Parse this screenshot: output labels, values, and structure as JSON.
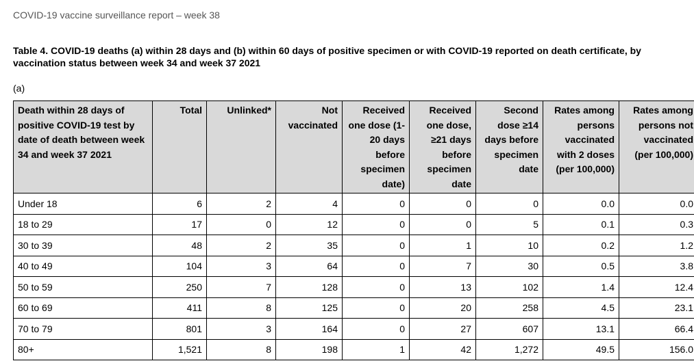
{
  "header": {
    "report_title": "COVID-19 vaccine surveillance report – week 38"
  },
  "table_title": "Table 4. COVID-19 deaths (a) within 28 days and (b) within 60 days of positive specimen or with COVID-19 reported on death certificate, by vaccination status between week 34 and week 37 2021",
  "section_label": "(a)",
  "columns": [
    "Death within 28 days of positive COVID-19 test by date of death between week 34 and week 37 2021",
    "Total",
    "Unlinked*",
    "Not vaccinated",
    "Received one dose (1-20 days before specimen date)",
    "Received one dose, ≥21 days before specimen date",
    "Second dose ≥14 days before specimen date",
    "Rates among persons vaccinated with 2 doses (per 100,000)",
    "Rates among persons not vaccinated (per 100,000)"
  ],
  "rows": [
    [
      "Under 18",
      "6",
      "2",
      "4",
      "0",
      "0",
      "0",
      "0.0",
      "0.0"
    ],
    [
      "18 to 29",
      "17",
      "0",
      "12",
      "0",
      "0",
      "5",
      "0.1",
      "0.3"
    ],
    [
      "30 to 39",
      "48",
      "2",
      "35",
      "0",
      "1",
      "10",
      "0.2",
      "1.2"
    ],
    [
      "40 to 49",
      "104",
      "3",
      "64",
      "0",
      "7",
      "30",
      "0.5",
      "3.8"
    ],
    [
      "50 to 59",
      "250",
      "7",
      "128",
      "0",
      "13",
      "102",
      "1.4",
      "12.4"
    ],
    [
      "60 to 69",
      "411",
      "8",
      "125",
      "0",
      "20",
      "258",
      "4.5",
      "23.1"
    ],
    [
      "70 to 79",
      "801",
      "3",
      "164",
      "0",
      "27",
      "607",
      "13.1",
      "66.4"
    ],
    [
      "80+",
      "1,521",
      "8",
      "198",
      "1",
      "42",
      "1,272",
      "49.5",
      "156.0"
    ]
  ]
}
